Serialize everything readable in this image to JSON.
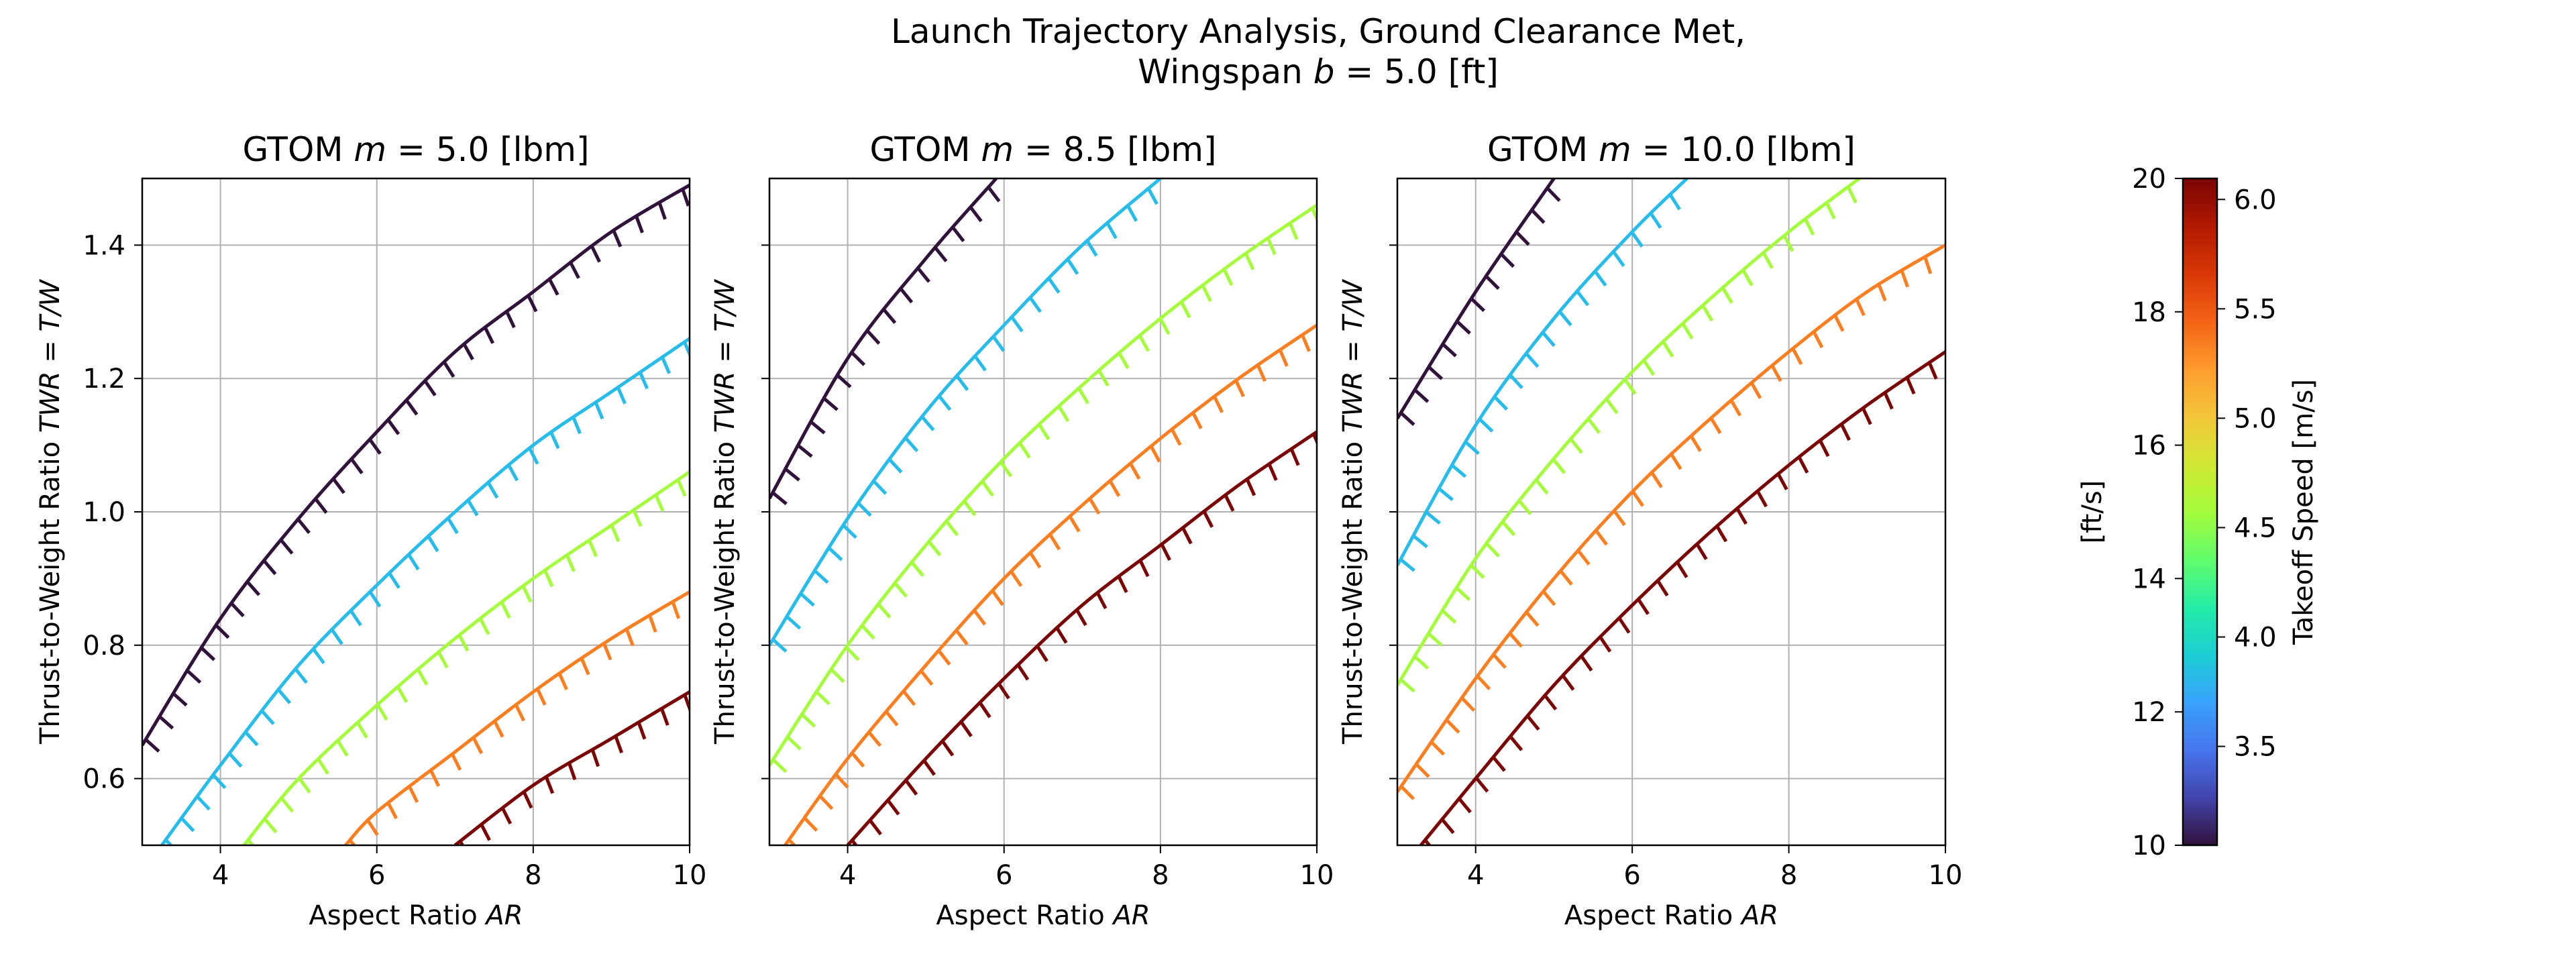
{
  "title_line1": "Launch Trajectory Analysis, Ground Clearance Met,",
  "title_line2_prefix": "Wingspan ",
  "title_line2_var": "b",
  "title_line2_suffix": " = 5.0 [ft]",
  "colorbar": {
    "left_label": "[ft/s]",
    "right_label": "Takeoff Speed [m/s]",
    "left_ticks": [
      "10",
      "12",
      "14",
      "16",
      "18",
      "20"
    ],
    "left_range": [
      10,
      20
    ],
    "right_ticks": [
      "3.5",
      "4.0",
      "4.5",
      "5.0",
      "5.5",
      "6.0"
    ],
    "right_range_ms": [
      3.048,
      6.096
    ],
    "colormap": "turbo"
  },
  "chart_data": [
    {
      "type": "line",
      "title_prefix": "GTOM ",
      "title_var": "m",
      "title_suffix": " = 5.0 [lbm]",
      "xlabel_text": "Aspect Ratio ",
      "xlabel_var": "AR",
      "ylabel_text": "Thrust-to-Weight Ratio ",
      "ylabel_var": "TWR = T/W",
      "xlim": [
        3,
        10
      ],
      "ylim": [
        0.5,
        1.5
      ],
      "xticks": [
        4,
        6,
        8,
        10
      ],
      "yticks": [
        0.6,
        0.8,
        1.0,
        1.2,
        1.4
      ],
      "grid": true,
      "series": [
        {
          "color": "#30123b",
          "x": [
            3,
            4,
            5,
            6,
            7,
            8,
            9,
            10
          ],
          "y": [
            0.65,
            0.84,
            0.99,
            1.12,
            1.24,
            1.33,
            1.42,
            1.49
          ]
        },
        {
          "color": "#28bceb",
          "x": [
            3.25,
            4,
            5,
            6,
            7,
            8,
            9,
            10
          ],
          "y": [
            0.5,
            0.62,
            0.77,
            0.89,
            1.0,
            1.1,
            1.18,
            1.26
          ]
        },
        {
          "color": "#a4fc3c",
          "x": [
            4.3,
            5,
            6,
            7,
            8,
            9,
            10
          ],
          "y": [
            0.5,
            0.6,
            0.71,
            0.81,
            0.9,
            0.98,
            1.06
          ]
        },
        {
          "color": "#fb7e21",
          "x": [
            5.6,
            6,
            7,
            8,
            9,
            10
          ],
          "y": [
            0.5,
            0.55,
            0.64,
            0.73,
            0.81,
            0.88
          ]
        },
        {
          "color": "#7a0403",
          "x": [
            7.0,
            8,
            9,
            10
          ],
          "y": [
            0.5,
            0.59,
            0.66,
            0.73
          ]
        }
      ]
    },
    {
      "type": "line",
      "title_prefix": "GTOM ",
      "title_var": "m",
      "title_suffix": " = 8.5 [lbm]",
      "xlabel_text": "Aspect Ratio ",
      "xlabel_var": "AR",
      "ylabel_text": "Thrust-to-Weight Ratio ",
      "ylabel_var": "TWR = T/W",
      "xlim": [
        3,
        10
      ],
      "ylim": [
        0.5,
        1.5
      ],
      "xticks": [
        4,
        6,
        8,
        10
      ],
      "yticks": [
        0.6,
        0.8,
        1.0,
        1.2,
        1.4
      ],
      "grid": true,
      "series": [
        {
          "color": "#30123b",
          "x": [
            3,
            4,
            5,
            5.9
          ],
          "y": [
            1.02,
            1.23,
            1.38,
            1.5
          ]
        },
        {
          "color": "#28bceb",
          "x": [
            3,
            4,
            5,
            6,
            7,
            8
          ],
          "y": [
            0.8,
            0.99,
            1.15,
            1.28,
            1.4,
            1.5
          ]
        },
        {
          "color": "#a4fc3c",
          "x": [
            3,
            4,
            5,
            6,
            7,
            8,
            9,
            10
          ],
          "y": [
            0.62,
            0.8,
            0.95,
            1.08,
            1.19,
            1.29,
            1.38,
            1.46
          ]
        },
        {
          "color": "#fb7e21",
          "x": [
            3.2,
            4,
            5,
            6,
            7,
            8,
            9,
            10
          ],
          "y": [
            0.5,
            0.63,
            0.77,
            0.9,
            1.01,
            1.11,
            1.2,
            1.28
          ]
        },
        {
          "color": "#7a0403",
          "x": [
            4.0,
            5,
            6,
            7,
            8,
            9,
            10
          ],
          "y": [
            0.5,
            0.63,
            0.75,
            0.86,
            0.95,
            1.04,
            1.12
          ]
        }
      ]
    },
    {
      "type": "line",
      "title_prefix": "GTOM ",
      "title_var": "m",
      "title_suffix": " = 10.0 [lbm]",
      "xlabel_text": "Aspect Ratio ",
      "xlabel_var": "AR",
      "ylabel_text": "Thrust-to-Weight Ratio ",
      "ylabel_var": "TWR = T/W",
      "xlim": [
        3,
        10
      ],
      "ylim": [
        0.5,
        1.5
      ],
      "xticks": [
        4,
        6,
        8,
        10
      ],
      "yticks": [
        0.6,
        0.8,
        1.0,
        1.2,
        1.4
      ],
      "grid": true,
      "series": [
        {
          "color": "#30123b",
          "x": [
            3,
            4,
            5
          ],
          "y": [
            1.14,
            1.33,
            1.5
          ]
        },
        {
          "color": "#28bceb",
          "x": [
            3,
            4,
            5,
            6,
            6.7
          ],
          "y": [
            0.92,
            1.13,
            1.29,
            1.42,
            1.5
          ]
        },
        {
          "color": "#a4fc3c",
          "x": [
            3,
            4,
            5,
            6,
            7,
            8,
            8.9
          ],
          "y": [
            0.74,
            0.93,
            1.08,
            1.21,
            1.32,
            1.42,
            1.5
          ]
        },
        {
          "color": "#fb7e21",
          "x": [
            3,
            4,
            5,
            6,
            7,
            8,
            9,
            10
          ],
          "y": [
            0.58,
            0.75,
            0.9,
            1.03,
            1.14,
            1.24,
            1.33,
            1.4
          ]
        },
        {
          "color": "#7a0403",
          "x": [
            3.3,
            4,
            5,
            6,
            7,
            8,
            9,
            10
          ],
          "y": [
            0.5,
            0.6,
            0.74,
            0.86,
            0.97,
            1.07,
            1.16,
            1.24
          ]
        }
      ]
    }
  ]
}
